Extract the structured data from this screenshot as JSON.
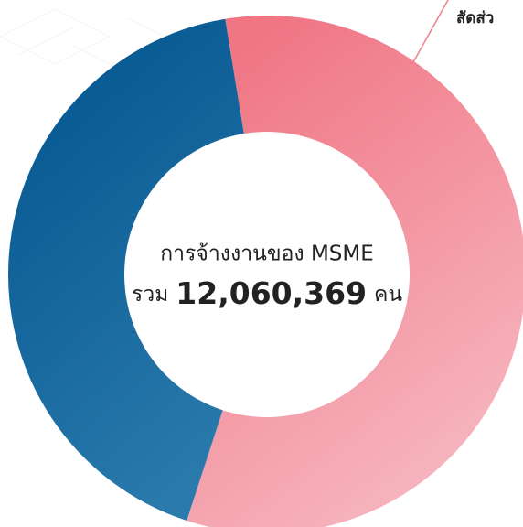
{
  "chart_data": {
    "type": "donut",
    "values": [
      57.6,
      42.4
    ],
    "colors": [
      [
        "#f07684",
        "#f7bcc5"
      ],
      [
        "#03558f",
        "#2a7aac"
      ]
    ],
    "annotation": "สัดส่ว",
    "center_text": {
      "line1": "การจ้างงานของ MSME",
      "prefix": "รวม",
      "total": "12,060,369",
      "unit": "คน"
    }
  }
}
